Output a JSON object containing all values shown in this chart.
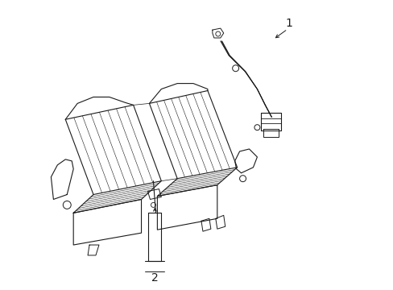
{
  "background_color": "#ffffff",
  "line_color": "#1a1a1a",
  "line_width": 0.8,
  "label_fontsize": 10,
  "figsize": [
    4.89,
    3.6
  ],
  "dpi": 100,
  "label_1": "1",
  "label_2": "2"
}
